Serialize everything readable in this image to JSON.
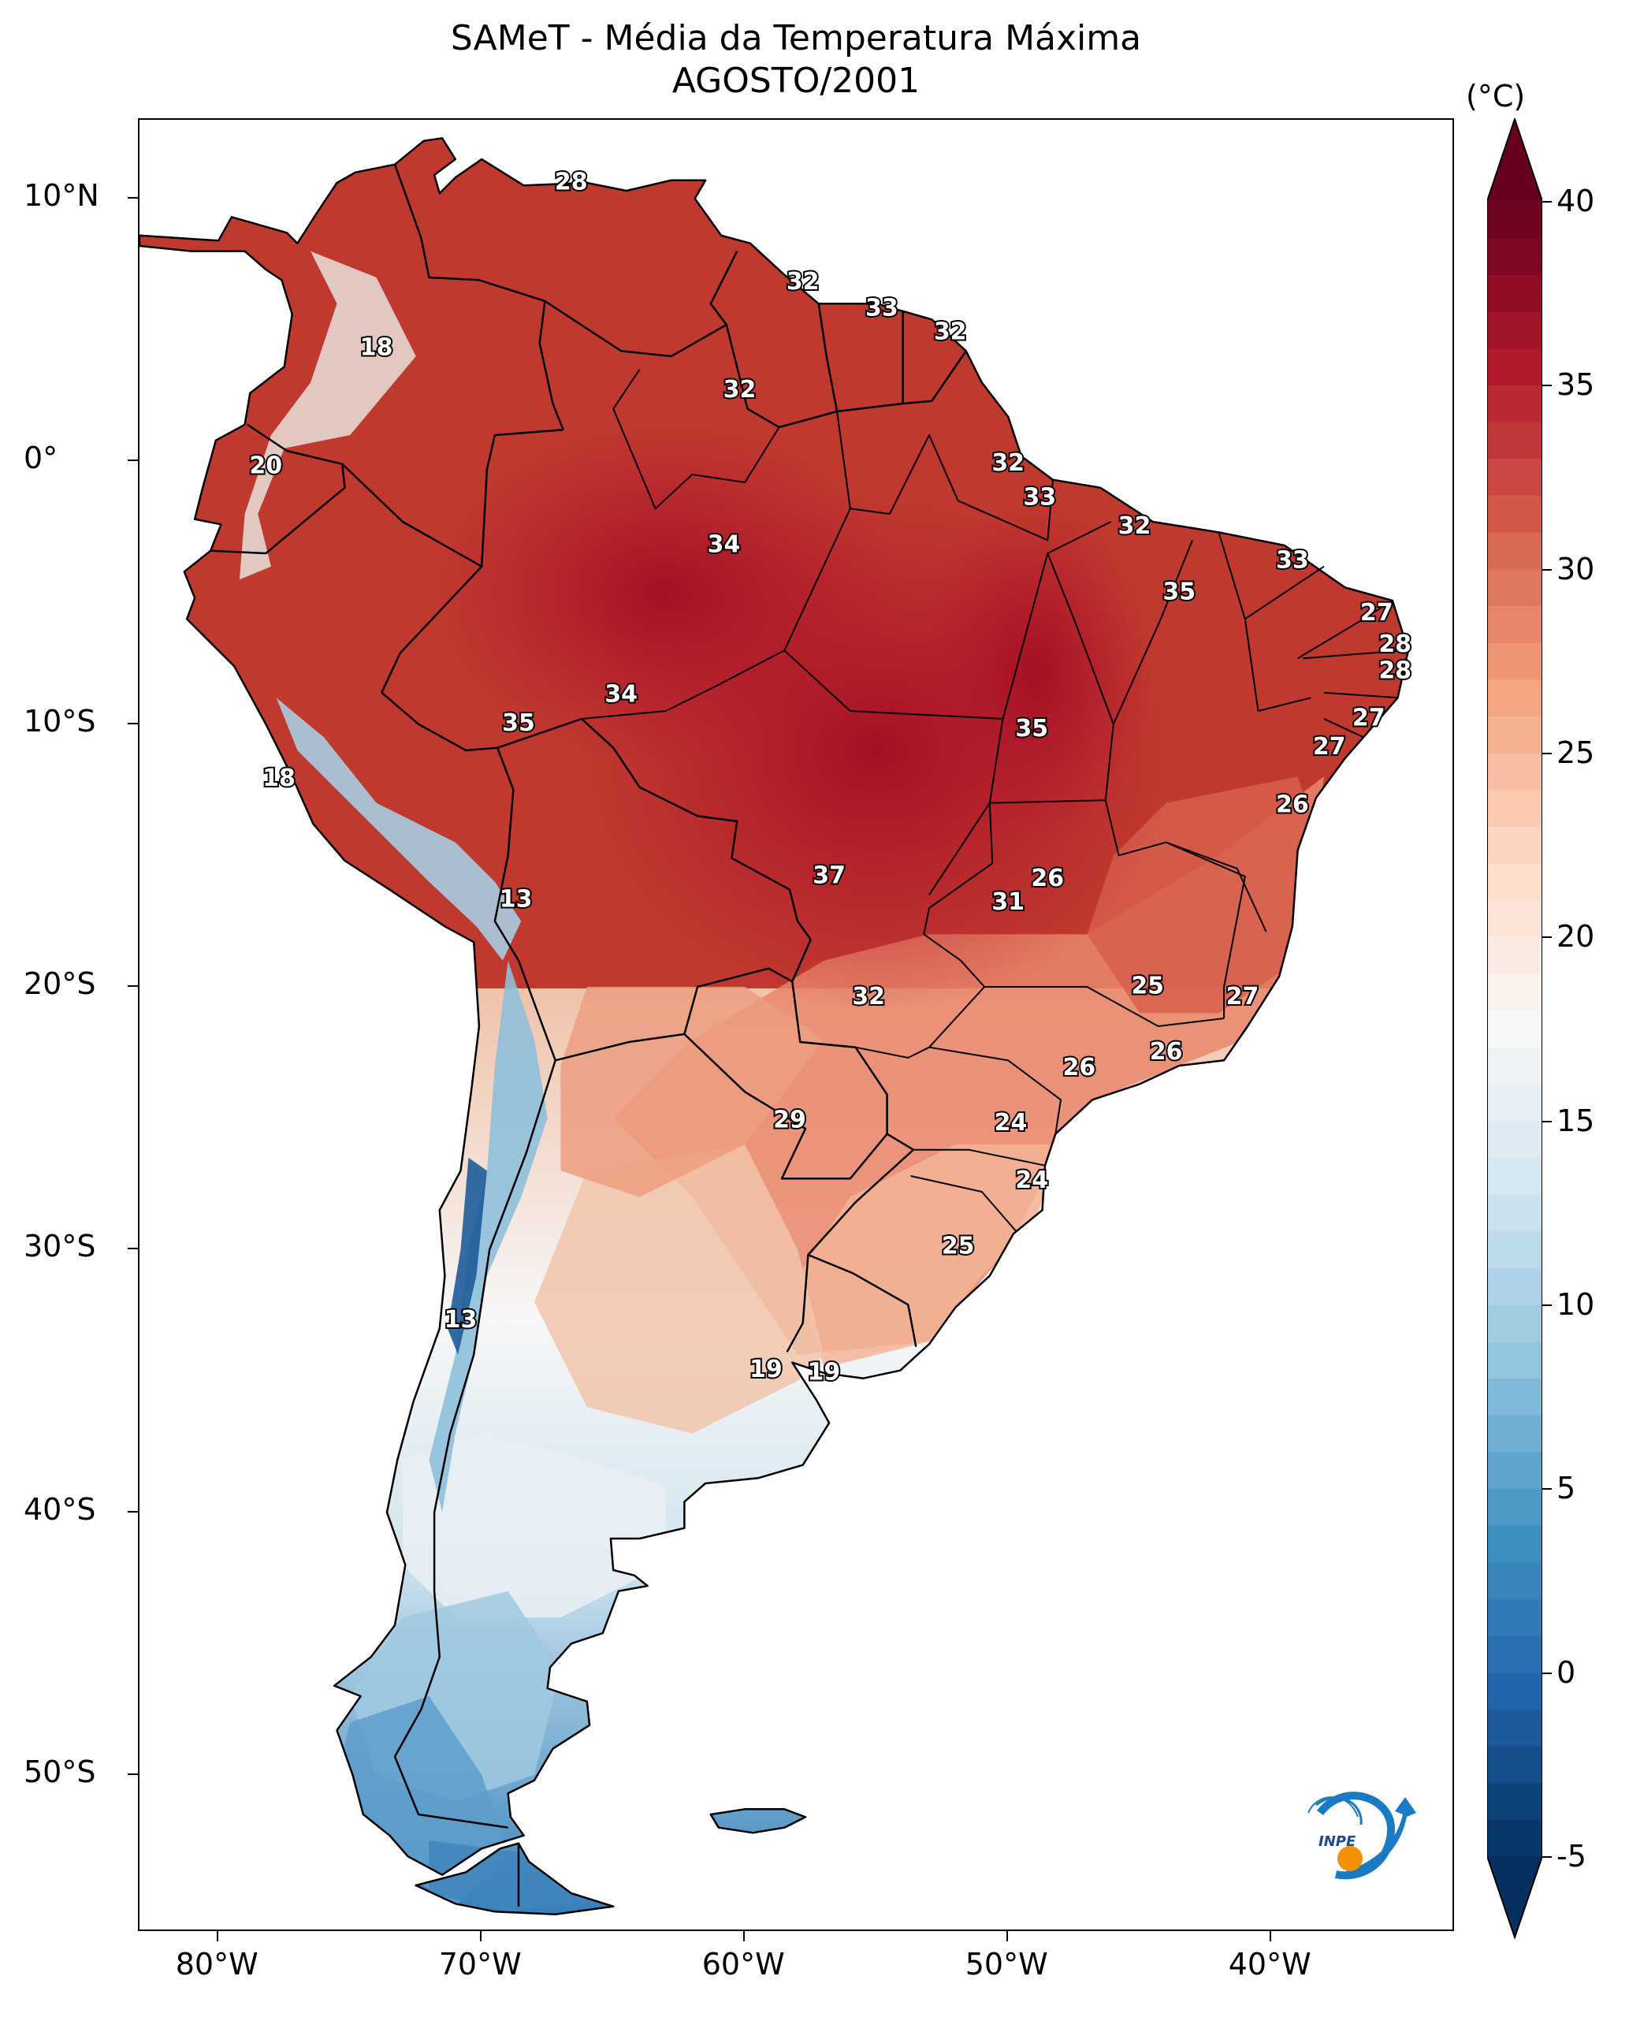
{
  "title": {
    "line1": "SAMeT - Média da Temperatura Máxima",
    "line2": "AGOSTO/2001"
  },
  "axes": {
    "y_ticks": [
      {
        "label": "10°N",
        "lat": 10
      },
      {
        "label": "0°",
        "lat": 0
      },
      {
        "label": "10°S",
        "lat": -10
      },
      {
        "label": "20°S",
        "lat": -20
      },
      {
        "label": "30°S",
        "lat": -30
      },
      {
        "label": "40°S",
        "lat": -40
      },
      {
        "label": "50°S",
        "lat": -50
      }
    ],
    "x_ticks": [
      {
        "label": "80°W",
        "lon": -80
      },
      {
        "label": "70°W",
        "lon": -70
      },
      {
        "label": "60°W",
        "lon": -60
      },
      {
        "label": "50°W",
        "lon": -50
      },
      {
        "label": "40°W",
        "lon": -40
      }
    ],
    "lon_range": [
      -83,
      -33
    ],
    "lat_range": [
      -56,
      13
    ]
  },
  "colorbar": {
    "unit": "(°C)",
    "range": [
      -5,
      40
    ],
    "extend": "both",
    "colormap": "RdBu_r",
    "ticks": [
      {
        "label": "40",
        "value": 40
      },
      {
        "label": "35",
        "value": 35
      },
      {
        "label": "30",
        "value": 30
      },
      {
        "label": "25",
        "value": 25
      },
      {
        "label": "20",
        "value": 20
      },
      {
        "label": "15",
        "value": 15
      },
      {
        "label": "10",
        "value": 10
      },
      {
        "label": "5",
        "value": 5
      },
      {
        "label": "0",
        "value": 0
      },
      {
        "label": "-5",
        "value": -5
      }
    ]
  },
  "colors": {
    "hot": "#b2182b",
    "warm": "#d6604d",
    "mild": "#f4a582",
    "neutral": "#f7f7f7",
    "cool": "#92c5de",
    "cold": "#2166ac",
    "coldest": "#053061",
    "darkest_red": "#67001f"
  },
  "logo": {
    "text": "INPE",
    "icon": "inpe-logo-icon"
  },
  "contour_labels": [
    {
      "text": "28",
      "lon": -66.6,
      "lat": 10.6
    },
    {
      "text": "18",
      "lon": -74.0,
      "lat": 4.3
    },
    {
      "text": "32",
      "lon": -57.8,
      "lat": 6.8
    },
    {
      "text": "33",
      "lon": -54.8,
      "lat": 5.8
    },
    {
      "text": "32",
      "lon": -52.2,
      "lat": 4.9
    },
    {
      "text": "32",
      "lon": -60.2,
      "lat": 2.7
    },
    {
      "text": "20",
      "lon": -78.2,
      "lat": -0.2
    },
    {
      "text": "32",
      "lon": -50.0,
      "lat": -0.1
    },
    {
      "text": "33",
      "lon": -48.8,
      "lat": -1.4
    },
    {
      "text": "32",
      "lon": -45.2,
      "lat": -2.5
    },
    {
      "text": "34",
      "lon": -60.8,
      "lat": -3.2
    },
    {
      "text": "33",
      "lon": -39.2,
      "lat": -3.8
    },
    {
      "text": "35",
      "lon": -43.5,
      "lat": -5.0
    },
    {
      "text": "27",
      "lon": -36.0,
      "lat": -5.8
    },
    {
      "text": "28",
      "lon": -35.3,
      "lat": -7.0
    },
    {
      "text": "28",
      "lon": -35.3,
      "lat": -8.0
    },
    {
      "text": "34",
      "lon": -64.7,
      "lat": -8.9
    },
    {
      "text": "35",
      "lon": -68.6,
      "lat": -10.0
    },
    {
      "text": "35",
      "lon": -49.1,
      "lat": -10.2
    },
    {
      "text": "27",
      "lon": -36.3,
      "lat": -9.8
    },
    {
      "text": "27",
      "lon": -37.8,
      "lat": -10.9
    },
    {
      "text": "18",
      "lon": -77.7,
      "lat": -12.1
    },
    {
      "text": "26",
      "lon": -39.2,
      "lat": -13.1
    },
    {
      "text": "26",
      "lon": -48.5,
      "lat": -15.9
    },
    {
      "text": "37",
      "lon": -56.8,
      "lat": -15.8
    },
    {
      "text": "31",
      "lon": -50.0,
      "lat": -16.8
    },
    {
      "text": "13",
      "lon": -68.7,
      "lat": -16.7
    },
    {
      "text": "25",
      "lon": -44.7,
      "lat": -20.0
    },
    {
      "text": "27",
      "lon": -41.1,
      "lat": -20.4
    },
    {
      "text": "32",
      "lon": -55.3,
      "lat": -20.4
    },
    {
      "text": "26",
      "lon": -47.3,
      "lat": -23.1
    },
    {
      "text": "26",
      "lon": -44.0,
      "lat": -22.5
    },
    {
      "text": "29",
      "lon": -58.3,
      "lat": -25.1
    },
    {
      "text": "24",
      "lon": -49.9,
      "lat": -25.2
    },
    {
      "text": "24",
      "lon": -49.1,
      "lat": -27.4
    },
    {
      "text": "25",
      "lon": -51.9,
      "lat": -29.9
    },
    {
      "text": "13",
      "lon": -70.8,
      "lat": -32.7
    },
    {
      "text": "19",
      "lon": -59.2,
      "lat": -34.6
    },
    {
      "text": "19",
      "lon": -57.0,
      "lat": -34.7
    }
  ]
}
